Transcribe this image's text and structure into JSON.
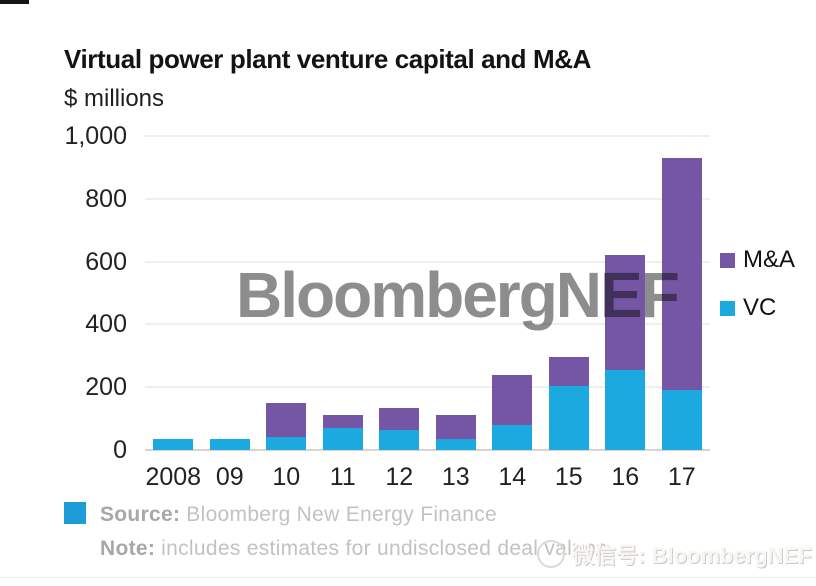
{
  "header": {
    "title": "Virtual power plant venture capital and M&A",
    "unit_label": "$ millions"
  },
  "chart_data": {
    "type": "bar",
    "stacked": true,
    "title": "Virtual power plant venture capital and M&A",
    "ylabel": "$ millions",
    "categories": [
      "2008",
      "09",
      "10",
      "11",
      "12",
      "13",
      "14",
      "15",
      "16",
      "17"
    ],
    "series": [
      {
        "name": "VC",
        "color": "#1BA9E0",
        "values": [
          35,
          35,
          40,
          70,
          65,
          35,
          80,
          205,
          255,
          190
        ]
      },
      {
        "name": "M&A",
        "color": "#7456A5",
        "values": [
          0,
          0,
          110,
          40,
          70,
          75,
          160,
          90,
          365,
          740
        ]
      }
    ],
    "totals": [
      35,
      35,
      150,
      110,
      135,
      110,
      240,
      295,
      620,
      930
    ],
    "ylim": [
      0,
      1000
    ],
    "ytick_labels": [
      "0",
      "200",
      "400",
      "600",
      "800",
      "1,000"
    ],
    "grid": true,
    "legend_position": "right"
  },
  "legend": {
    "items": [
      {
        "label": "M&A",
        "color": "#7456A5"
      },
      {
        "label": "VC",
        "color": "#1BA9E0"
      }
    ]
  },
  "watermark": {
    "text": "BloombergNEF",
    "color": "#8d8d8d"
  },
  "footer": {
    "swatch_color": "#1E9CD7",
    "source_label": "Source:",
    "source_text": "Bloomberg New Energy Finance",
    "note_label": "Note:",
    "note_text": "includes estimates for undisclosed deal values",
    "wechat_text": "微信号: BloombergNEF"
  }
}
